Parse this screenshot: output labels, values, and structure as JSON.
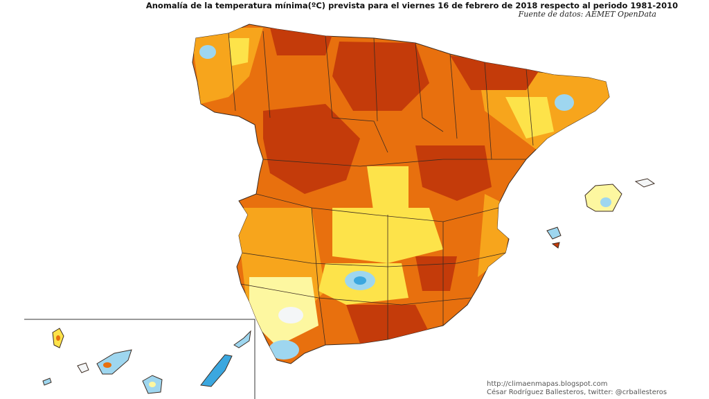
{
  "title": "Anomalía de la temperatura mínima(ºC) prevista para el viernes 16 de febrero de 2018 respecto al periodo 1981-2010",
  "source": "Fuente de datos: AEMET OpenData",
  "credits": {
    "url": "http://climaenmapas.blogspot.com",
    "author": "César Rodríguez Ballesteros, twitter: @crballesteros"
  },
  "palette": {
    "strong_warm": "#c43b0a",
    "warm": "#e8700e",
    "moderate": "#f7a51c",
    "light": "#fde34a",
    "slight": "#fdf7a0",
    "neutral": "#f4f6f7",
    "cool": "#9ed6ef",
    "cold": "#3ba7df",
    "border": "#3a2a20",
    "background": "#ffffff"
  }
}
